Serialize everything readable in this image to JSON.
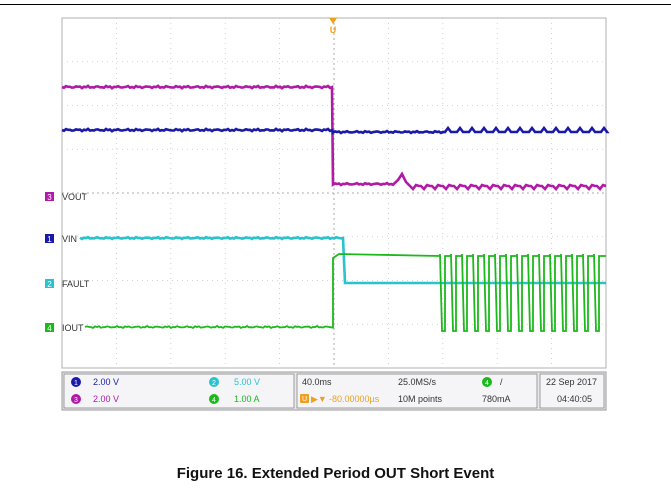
{
  "chart_data": {
    "type": "line",
    "title": "",
    "xlabel": "",
    "ylabel": "",
    "time_per_div": "40.0ms",
    "sample_rate": "25.0MS/s",
    "record_length": "10M points",
    "trigger_delay": "-80.00000µs",
    "trigger_level": "780mA",
    "trigger_marker": "U",
    "grid": true,
    "divisions": {
      "x": 10,
      "y": 8
    },
    "date": "22 Sep 2017",
    "time": "04:40:05",
    "channels": [
      {
        "id": "1",
        "name": "VIN",
        "scale": "2.00 V",
        "color": "#1a1aa8"
      },
      {
        "id": "2",
        "name": "FAULT",
        "scale": "5.00 V",
        "color": "#27c3cf"
      },
      {
        "id": "3",
        "name": "VOUT",
        "scale": "2.00 V",
        "color": "#b01aa6"
      },
      {
        "id": "4",
        "name": "IOUT",
        "scale": "1.00 A",
        "color": "#1cb81c"
      }
    ]
  },
  "caption": "Figure 16. Extended Period OUT Short Event"
}
